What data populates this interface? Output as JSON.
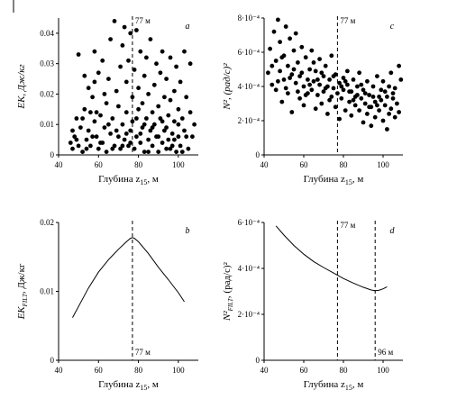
{
  "chart_data": [
    {
      "id": "a",
      "type": "scatter",
      "panel_label": "a",
      "xlabel": "Глубина z",
      "xlabel_sub": "15",
      "xlabel_unit": ", м",
      "ylabel": "EK, Дж/кг",
      "xlim": [
        40,
        110
      ],
      "ylim": [
        0,
        0.045
      ],
      "xticks": [
        40,
        60,
        80,
        100
      ],
      "yticks": [
        {
          "v": 0,
          "label": "0"
        },
        {
          "v": 0.01,
          "label": "0.01"
        },
        {
          "v": 0.02,
          "label": "0.02"
        },
        {
          "v": 0.03,
          "label": "0.03"
        },
        {
          "v": 0.04,
          "label": "0.04"
        }
      ],
      "vlines": [
        {
          "x": 77,
          "label": "77 м",
          "label_pos": "top"
        }
      ],
      "points": [
        [
          46,
          0.004
        ],
        [
          47,
          0.002
        ],
        [
          48,
          0.006
        ],
        [
          49,
          0.012
        ],
        [
          50,
          0.033
        ],
        [
          50,
          0.003
        ],
        [
          51,
          0.009
        ],
        [
          52,
          0.001
        ],
        [
          53,
          0.015
        ],
        [
          54,
          0.005
        ],
        [
          55,
          0.022
        ],
        [
          55,
          0.008
        ],
        [
          56,
          0.003
        ],
        [
          57,
          0.019
        ],
        [
          58,
          0.011
        ],
        [
          58,
          0.034
        ],
        [
          59,
          0.006
        ],
        [
          60,
          0.002
        ],
        [
          60,
          0.027
        ],
        [
          61,
          0.013
        ],
        [
          62,
          0.004
        ],
        [
          62,
          0.031
        ],
        [
          63,
          0.009
        ],
        [
          64,
          0.017
        ],
        [
          64,
          0.001
        ],
        [
          65,
          0.025
        ],
        [
          66,
          0.007
        ],
        [
          66,
          0.038
        ],
        [
          67,
          0.012
        ],
        [
          68,
          0.003
        ],
        [
          68,
          0.044
        ],
        [
          69,
          0.021
        ],
        [
          70,
          0.006
        ],
        [
          70,
          0.016
        ],
        [
          71,
          0.029
        ],
        [
          71,
          0.002
        ],
        [
          72,
          0.01
        ],
        [
          72,
          0.036
        ],
        [
          73,
          0.005
        ],
        [
          73,
          0.042
        ],
        [
          74,
          0.014
        ],
        [
          74,
          0.024
        ],
        [
          75,
          0.003
        ],
        [
          75,
          0.031
        ],
        [
          76,
          0.008
        ],
        [
          76,
          0.04
        ],
        [
          77,
          0.019
        ],
        [
          77,
          0.011
        ],
        [
          78,
          0.002
        ],
        [
          78,
          0.028
        ],
        [
          79,
          0.006
        ],
        [
          79,
          0.041
        ],
        [
          80,
          0.015
        ],
        [
          80,
          0.022
        ],
        [
          81,
          0.004
        ],
        [
          81,
          0.034
        ],
        [
          82,
          0.009
        ],
        [
          82,
          0.017
        ],
        [
          83,
          0.001
        ],
        [
          83,
          0.026
        ],
        [
          84,
          0.012
        ],
        [
          84,
          0.032
        ],
        [
          85,
          0.005
        ],
        [
          85,
          0.02
        ],
        [
          86,
          0.008
        ],
        [
          86,
          0.038
        ],
        [
          87,
          0.014
        ],
        [
          87,
          0.003
        ],
        [
          88,
          0.023
        ],
        [
          88,
          0.01
        ],
        [
          89,
          0.03
        ],
        [
          89,
          0.006
        ],
        [
          90,
          0.016
        ],
        [
          90,
          0.001
        ],
        [
          91,
          0.027
        ],
        [
          91,
          0.012
        ],
        [
          92,
          0.004
        ],
        [
          92,
          0.034
        ],
        [
          93,
          0.019
        ],
        [
          93,
          0.008
        ],
        [
          94,
          0.002
        ],
        [
          94,
          0.025
        ],
        [
          95,
          0.013
        ],
        [
          95,
          0.005
        ],
        [
          96,
          0.032
        ],
        [
          96,
          0.018
        ],
        [
          97,
          0.007
        ],
        [
          97,
          0.003
        ],
        [
          98,
          0.021
        ],
        [
          98,
          0.011
        ],
        [
          99,
          0.001
        ],
        [
          99,
          0.029
        ],
        [
          100,
          0.015
        ],
        [
          100,
          0.006
        ],
        [
          101,
          0.024
        ],
        [
          101,
          0.003
        ],
        [
          102,
          0.012
        ],
        [
          103,
          0.034
        ],
        [
          103,
          0.008
        ],
        [
          104,
          0.019
        ],
        [
          105,
          0.002
        ],
        [
          106,
          0.014
        ],
        [
          106,
          0.03
        ],
        [
          107,
          0.006
        ],
        [
          108,
          0.01
        ],
        [
          47,
          0.008
        ],
        [
          49,
          0.005
        ],
        [
          52,
          0.012
        ],
        [
          54,
          0.002
        ],
        [
          57,
          0.006
        ],
        [
          59,
          0.014
        ],
        [
          61,
          0.004
        ],
        [
          63,
          0.02
        ],
        [
          65,
          0.01
        ],
        [
          67,
          0.002
        ],
        [
          69,
          0.008
        ],
        [
          72,
          0.003
        ],
        [
          74,
          0.007
        ],
        [
          76,
          0.004
        ],
        [
          79,
          0.012
        ],
        [
          81,
          0.007
        ],
        [
          83,
          0.01
        ],
        [
          85,
          0.001
        ],
        [
          87,
          0.009
        ],
        [
          90,
          0.006
        ],
        [
          92,
          0.011
        ],
        [
          94,
          0.009
        ],
        [
          96,
          0.002
        ],
        [
          98,
          0.005
        ],
        [
          100,
          0.01
        ],
        [
          102,
          0.001
        ],
        [
          104,
          0.006
        ],
        [
          53,
          0.026
        ],
        [
          56,
          0.014
        ],
        [
          58,
          0.024
        ]
      ]
    },
    {
      "id": "c",
      "type": "scatter",
      "panel_label": "c",
      "xlabel": "Глубина z",
      "xlabel_sub": "15",
      "xlabel_unit": ", м",
      "ylabel": "N², (рад/с)²",
      "xlim": [
        40,
        110
      ],
      "ylim": [
        0,
        0.0008
      ],
      "xticks": [
        40,
        60,
        80,
        100
      ],
      "yticks": [
        {
          "v": 0,
          "label": "0"
        },
        {
          "v": 0.0002,
          "label": "2·10⁻⁴"
        },
        {
          "v": 0.0004,
          "label": "4·10⁻⁴"
        },
        {
          "v": 0.0006,
          "label": "6·10⁻⁴"
        },
        {
          "v": 0.0008,
          "label": "8·10⁻⁴"
        }
      ],
      "vlines": [
        {
          "x": 77,
          "label": "77 м",
          "label_pos": "top"
        }
      ],
      "points": [
        [
          42,
          0.00048
        ],
        [
          43,
          0.00062
        ],
        [
          44,
          0.00041
        ],
        [
          45,
          0.00072
        ],
        [
          46,
          0.00055
        ],
        [
          46,
          0.00038
        ],
        [
          47,
          0.00079
        ],
        [
          48,
          0.00049
        ],
        [
          48,
          0.00066
        ],
        [
          49,
          0.00031
        ],
        [
          50,
          0.00058
        ],
        [
          50,
          0.00044
        ],
        [
          51,
          0.00075
        ],
        [
          52,
          0.00052
        ],
        [
          52,
          0.00036
        ],
        [
          53,
          0.00068
        ],
        [
          54,
          0.00047
        ],
        [
          54,
          0.00025
        ],
        [
          55,
          0.00061
        ],
        [
          56,
          0.00042
        ],
        [
          56,
          0.00071
        ],
        [
          57,
          0.00054
        ],
        [
          58,
          0.00033
        ],
        [
          58,
          0.00046
        ],
        [
          59,
          0.00063
        ],
        [
          60,
          0.0004
        ],
        [
          60,
          0.00029
        ],
        [
          61,
          0.00057
        ],
        [
          62,
          0.00044
        ],
        [
          62,
          0.00036
        ],
        [
          63,
          0.0005
        ],
        [
          64,
          0.00038
        ],
        [
          64,
          0.00061
        ],
        [
          65,
          0.00043
        ],
        [
          66,
          0.00027
        ],
        [
          66,
          0.00049
        ],
        [
          67,
          0.00035
        ],
        [
          68,
          0.00056
        ],
        [
          68,
          0.00041
        ],
        [
          69,
          0.0003
        ],
        [
          70,
          0.00046
        ],
        [
          70,
          0.00037
        ],
        [
          71,
          0.00052
        ],
        [
          72,
          0.0004
        ],
        [
          72,
          0.00024
        ],
        [
          73,
          0.00044
        ],
        [
          74,
          0.00034
        ],
        [
          74,
          0.00058
        ],
        [
          75,
          0.00039
        ],
        [
          76,
          0.00028
        ],
        [
          76,
          0.00047
        ],
        [
          77,
          0.00036
        ],
        [
          78,
          0.00042
        ],
        [
          78,
          0.00021
        ],
        [
          79,
          0.00033
        ],
        [
          80,
          0.00045
        ],
        [
          80,
          0.00038
        ],
        [
          81,
          0.00026
        ],
        [
          82,
          0.00041
        ],
        [
          82,
          0.00049
        ],
        [
          83,
          0.00031
        ],
        [
          84,
          0.00037
        ],
        [
          84,
          0.00023
        ],
        [
          85,
          0.00044
        ],
        [
          86,
          0.00034
        ],
        [
          86,
          0.00029
        ],
        [
          87,
          0.0004
        ],
        [
          88,
          0.00026
        ],
        [
          88,
          0.00048
        ],
        [
          89,
          0.00033
        ],
        [
          90,
          0.00019
        ],
        [
          90,
          0.00038
        ],
        [
          91,
          0.0003
        ],
        [
          92,
          0.00043
        ],
        [
          92,
          0.00024
        ],
        [
          93,
          0.00035
        ],
        [
          94,
          0.00028
        ],
        [
          94,
          0.00017
        ],
        [
          95,
          0.0004
        ],
        [
          96,
          0.00031
        ],
        [
          96,
          0.00022
        ],
        [
          97,
          0.00046
        ],
        [
          98,
          0.00034
        ],
        [
          98,
          0.00026
        ],
        [
          99,
          0.00038
        ],
        [
          100,
          0.0002
        ],
        [
          100,
          0.00043
        ],
        [
          101,
          0.00029
        ],
        [
          102,
          0.00034
        ],
        [
          102,
          0.00015
        ],
        [
          103,
          0.0004
        ],
        [
          104,
          0.00027
        ],
        [
          104,
          0.00048
        ],
        [
          105,
          0.00033
        ],
        [
          106,
          0.00022
        ],
        [
          106,
          0.00039
        ],
        [
          107,
          0.0003
        ],
        [
          108,
          0.00052
        ],
        [
          108,
          0.00025
        ],
        [
          109,
          0.00044
        ],
        [
          44,
          0.00052
        ],
        [
          47,
          0.00043
        ],
        [
          49,
          0.00057
        ],
        [
          51,
          0.00039
        ],
        [
          53,
          0.00045
        ],
        [
          55,
          0.0005
        ],
        [
          57,
          0.00037
        ],
        [
          59,
          0.00048
        ],
        [
          61,
          0.00035
        ],
        [
          63,
          0.00041
        ],
        [
          65,
          0.00054
        ],
        [
          67,
          0.00044
        ],
        [
          69,
          0.00048
        ],
        [
          71,
          0.00039
        ],
        [
          73,
          0.00032
        ],
        [
          75,
          0.00046
        ],
        [
          79,
          0.0004
        ],
        [
          81,
          0.00043
        ],
        [
          83,
          0.00037
        ],
        [
          85,
          0.00032
        ],
        [
          87,
          0.00035
        ],
        [
          89,
          0.00041
        ],
        [
          91,
          0.00036
        ],
        [
          93,
          0.00028
        ],
        [
          95,
          0.00034
        ],
        [
          97,
          0.00029
        ],
        [
          99,
          0.00032
        ],
        [
          101,
          0.00037
        ],
        [
          103,
          0.00024
        ],
        [
          105,
          0.00036
        ]
      ]
    },
    {
      "id": "b",
      "type": "line",
      "panel_label": "b",
      "xlabel": "Глубина z",
      "xlabel_sub": "15",
      "xlabel_unit": ", м",
      "ylabel": "EK",
      "ylabel_sub": "FILT",
      "ylabel_unit": ", Дж/кг",
      "xlim": [
        40,
        110
      ],
      "ylim": [
        0,
        0.02
      ],
      "xticks": [
        40,
        60,
        80,
        100
      ],
      "yticks": [
        {
          "v": 0,
          "label": "0"
        },
        {
          "v": 0.01,
          "label": "0.01"
        },
        {
          "v": 0.02,
          "label": "0.02"
        }
      ],
      "vlines": [
        {
          "x": 77,
          "label": "77 м",
          "label_pos": "bottom"
        }
      ],
      "x": [
        47,
        50,
        55,
        60,
        65,
        70,
        74,
        76,
        77,
        78,
        80,
        85,
        90,
        95,
        100,
        103
      ],
      "y": [
        0.0062,
        0.0078,
        0.0105,
        0.0128,
        0.0146,
        0.0161,
        0.0172,
        0.0177,
        0.0178,
        0.0177,
        0.0172,
        0.0155,
        0.0135,
        0.0117,
        0.0098,
        0.0085
      ]
    },
    {
      "id": "d",
      "type": "line",
      "panel_label": "d",
      "xlabel": "Глубина z",
      "xlabel_sub": "15",
      "xlabel_unit": ", м",
      "ylabel": "N²",
      "ylabel_sub": "FILT",
      "ylabel_unit": ", (рад/с)²",
      "xlim": [
        40,
        110
      ],
      "ylim": [
        0,
        0.0006
      ],
      "xticks": [
        40,
        60,
        80,
        100
      ],
      "yticks": [
        {
          "v": 0,
          "label": "0"
        },
        {
          "v": 0.0002,
          "label": "2·10⁻⁴"
        },
        {
          "v": 0.0004,
          "label": "4·10⁻⁴"
        },
        {
          "v": 0.0006,
          "label": "6·10⁻⁴"
        }
      ],
      "vlines": [
        {
          "x": 77,
          "label": "77 м",
          "label_pos": "top"
        },
        {
          "x": 96,
          "label": "96 м",
          "label_pos": "bottom"
        }
      ],
      "x": [
        46,
        50,
        55,
        60,
        65,
        70,
        75,
        80,
        85,
        90,
        94,
        96,
        98,
        100,
        102
      ],
      "y": [
        0.000585,
        0.000545,
        0.0005,
        0.000462,
        0.00043,
        0.000404,
        0.00038,
        0.000356,
        0.000336,
        0.000318,
        0.000306,
        0.000303,
        0.000305,
        0.000311,
        0.00032
      ]
    }
  ]
}
